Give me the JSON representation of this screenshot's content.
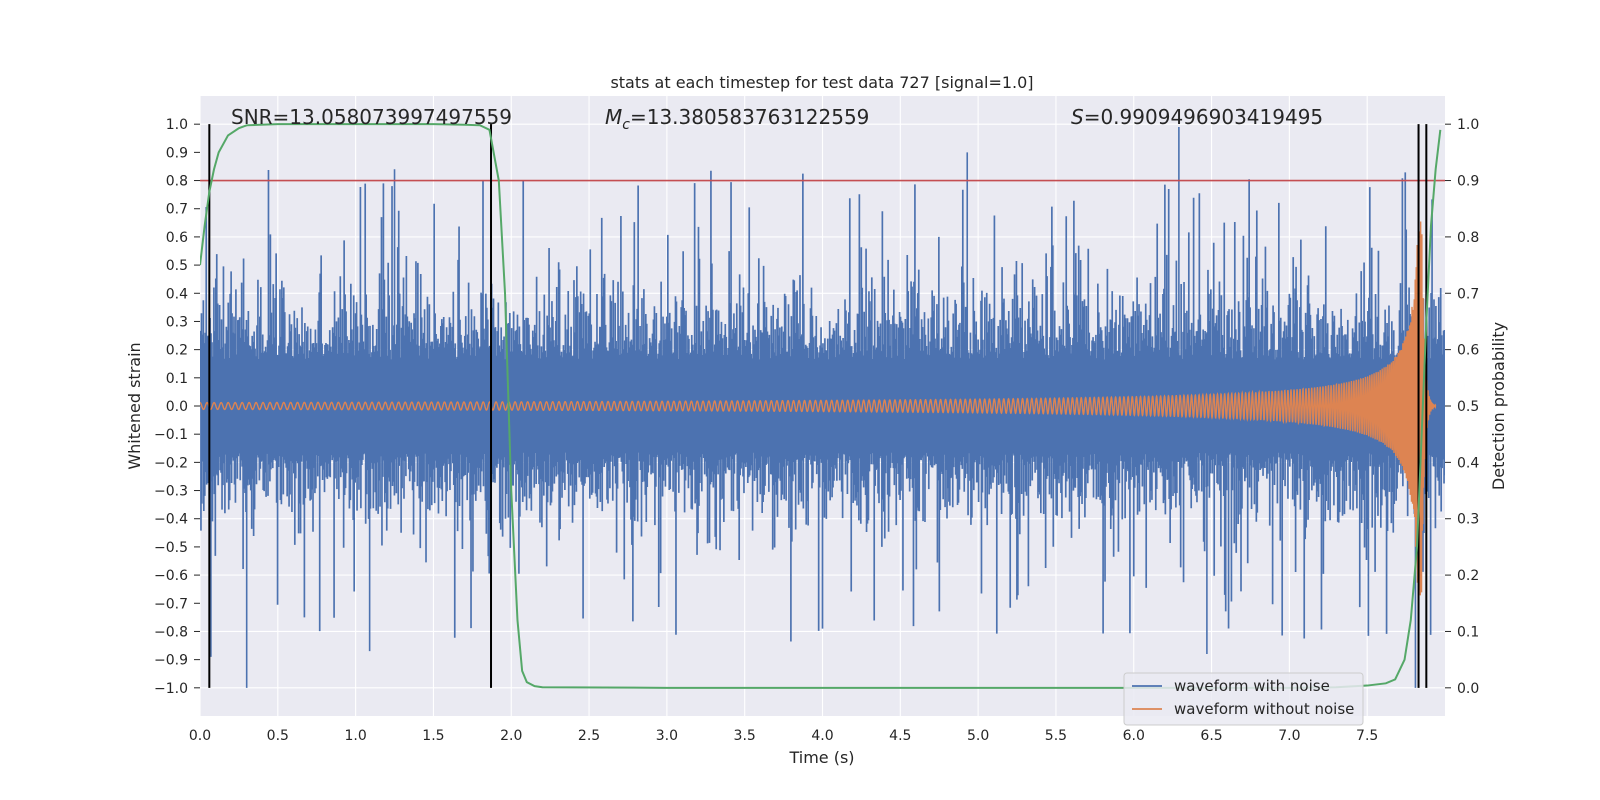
{
  "chart_data": {
    "type": "line",
    "title": "stats at each timestep for test data 727 [signal=1.0]",
    "xlabel": "Time (s)",
    "ylabel": "Whitened strain",
    "ylabel_right": "Detection probability",
    "xlim": [
      0.0,
      8.0
    ],
    "ylim": [
      -1.1,
      1.1
    ],
    "ylim_right": [
      -0.05,
      1.05
    ],
    "x_ticks": [
      "0.0",
      "0.5",
      "1.0",
      "1.5",
      "2.0",
      "2.5",
      "3.0",
      "3.5",
      "4.0",
      "4.5",
      "5.0",
      "5.5",
      "6.0",
      "6.5",
      "7.0",
      "7.5"
    ],
    "y_ticks": [
      "1.0",
      "0.9",
      "0.8",
      "0.7",
      "0.6",
      "0.5",
      "0.4",
      "0.3",
      "0.2",
      "0.1",
      "0.0",
      "-0.1",
      "-0.2",
      "-0.3",
      "-0.4",
      "-0.5",
      "-0.6",
      "-0.7",
      "-0.8",
      "-0.9",
      "-1.0"
    ],
    "y_ticks_right": [
      "1.0",
      "0.9",
      "0.8",
      "0.7",
      "0.6",
      "0.5",
      "0.4",
      "0.3",
      "0.2",
      "0.1",
      "0.0"
    ],
    "annotations": {
      "snr": "SNR=13.058073997497559",
      "mc_symbol": "M",
      "mc_sub": "c",
      "mc_value": "=13.380583763122559",
      "s_symbol": "S",
      "s_value": "=0.9909496903419495"
    },
    "threshold_right": 0.9,
    "vlines": [
      0.06,
      1.87,
      7.83,
      7.88
    ],
    "series": [
      {
        "name": "waveform with noise",
        "color": "#4c72b0",
        "kind": "noise",
        "typical_amplitude": 0.3,
        "max": 0.99,
        "min": -1.0
      },
      {
        "name": "waveform without noise",
        "color": "#dd8452",
        "kind": "chirp",
        "peak_time": 7.85,
        "peak_amplitude": 0.68
      },
      {
        "name": "detection probability",
        "color": "#55a868",
        "axis": "right",
        "x": [
          0.0,
          0.03,
          0.06,
          0.09,
          0.12,
          0.18,
          0.25,
          0.3,
          0.5,
          1.0,
          1.5,
          1.7,
          1.8,
          1.86,
          1.92,
          1.96,
          2.0,
          2.04,
          2.07,
          2.1,
          2.15,
          2.2,
          3.0,
          5.0,
          7.0,
          7.3,
          7.5,
          7.62,
          7.68,
          7.74,
          7.78,
          7.82,
          7.85,
          7.88,
          7.91,
          7.94,
          7.97
        ],
        "values": [
          0.75,
          0.82,
          0.88,
          0.92,
          0.95,
          0.98,
          0.993,
          0.998,
          1.0,
          1.0,
          1.0,
          0.999,
          0.998,
          0.99,
          0.9,
          0.7,
          0.35,
          0.12,
          0.03,
          0.01,
          0.003,
          0.001,
          0.0,
          0.0,
          0.0,
          0.001,
          0.004,
          0.008,
          0.015,
          0.05,
          0.12,
          0.25,
          0.45,
          0.65,
          0.82,
          0.92,
          0.99
        ]
      }
    ],
    "legend_position": "lower-right"
  }
}
